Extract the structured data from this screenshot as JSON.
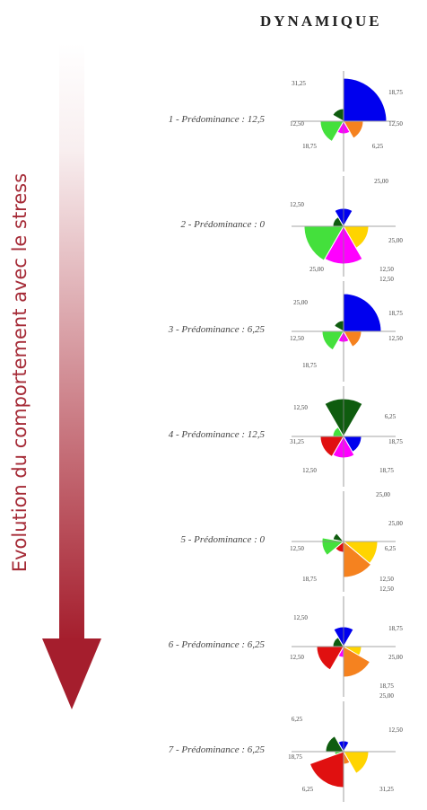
{
  "header": "DYNAMIQUE",
  "side_label": "Evolution du comportement avec le stress",
  "colors": {
    "blue": "#0000ee",
    "orange": "#f5821f",
    "magenta": "#ff00ff",
    "lightgreen": "#44e03c",
    "darkgreen": "#0f5c0f",
    "yellow": "#ffd400",
    "red": "#e01010",
    "arrow": "#a51e2d"
  },
  "rows": [
    {
      "label": "1 - Prédominance : 12,5",
      "sectors": [
        {
          "color": "blue",
          "start": 0,
          "end": 90,
          "r": 48
        },
        {
          "color": "orange",
          "start": 300,
          "end": 360,
          "r": 22
        },
        {
          "color": "magenta",
          "start": 240,
          "end": 300,
          "r": 14
        },
        {
          "color": "lightgreen",
          "start": 180,
          "end": 240,
          "r": 26
        },
        {
          "color": "darkgreen",
          "start": 90,
          "end": 150,
          "r": 14
        }
      ],
      "labels": [
        {
          "text": "31,25",
          "dx": -50,
          "dy": -40
        },
        {
          "text": "18,75",
          "dx": 58,
          "dy": -30
        },
        {
          "text": "12,50",
          "dx": -52,
          "dy": 5
        },
        {
          "text": "12,50",
          "dx": 58,
          "dy": 5
        },
        {
          "text": "18,75",
          "dx": -38,
          "dy": 30
        },
        {
          "text": "6,25",
          "dx": 38,
          "dy": 30
        }
      ]
    },
    {
      "label": "2 - Prédominance : 0",
      "sectors": [
        {
          "color": "yellow",
          "start": 300,
          "end": 360,
          "r": 28
        },
        {
          "color": "magenta",
          "start": 240,
          "end": 300,
          "r": 42
        },
        {
          "color": "lightgreen",
          "start": 180,
          "end": 240,
          "r": 44
        },
        {
          "color": "darkgreen",
          "start": 120,
          "end": 180,
          "r": 12
        },
        {
          "color": "blue",
          "start": 60,
          "end": 120,
          "r": 20
        }
      ],
      "labels": [
        {
          "text": "25,00",
          "dx": 42,
          "dy": -48
        },
        {
          "text": "12,50",
          "dx": -52,
          "dy": -22
        },
        {
          "text": "25,00",
          "dx": 58,
          "dy": 18
        },
        {
          "text": "25,00",
          "dx": -30,
          "dy": 50
        },
        {
          "text": "12,50",
          "dx": 48,
          "dy": 50
        },
        {
          "text": "12,50",
          "dx": 48,
          "dy": 61
        }
      ]
    },
    {
      "label": "3 - Prédominance : 6,25",
      "sectors": [
        {
          "color": "blue",
          "start": 0,
          "end": 90,
          "r": 42
        },
        {
          "color": "orange",
          "start": 300,
          "end": 360,
          "r": 20
        },
        {
          "color": "magenta",
          "start": 240,
          "end": 300,
          "r": 12
        },
        {
          "color": "lightgreen",
          "start": 180,
          "end": 240,
          "r": 24
        },
        {
          "color": "darkgreen",
          "start": 90,
          "end": 150,
          "r": 12
        }
      ],
      "labels": [
        {
          "text": "25,00",
          "dx": -48,
          "dy": -30
        },
        {
          "text": "18,75",
          "dx": 58,
          "dy": -18
        },
        {
          "text": "12,50",
          "dx": -52,
          "dy": 10
        },
        {
          "text": "12,50",
          "dx": 58,
          "dy": 10
        },
        {
          "text": "18,75",
          "dx": -38,
          "dy": 40
        }
      ]
    },
    {
      "label": "4 - Prédominance : 12,5",
      "sectors": [
        {
          "color": "blue",
          "start": 300,
          "end": 360,
          "r": 20
        },
        {
          "color": "magenta",
          "start": 240,
          "end": 300,
          "r": 24
        },
        {
          "color": "red",
          "start": 180,
          "end": 240,
          "r": 26
        },
        {
          "color": "lightgreen",
          "start": 120,
          "end": 180,
          "r": 12
        },
        {
          "color": "darkgreen",
          "start": 60,
          "end": 120,
          "r": 42
        }
      ],
      "labels": [
        {
          "text": "12,50",
          "dx": -48,
          "dy": -30
        },
        {
          "text": "6,25",
          "dx": 52,
          "dy": -20
        },
        {
          "text": "31,25",
          "dx": -52,
          "dy": 8
        },
        {
          "text": "18,75",
          "dx": 58,
          "dy": 8
        },
        {
          "text": "12,50",
          "dx": -38,
          "dy": 40
        },
        {
          "text": "18,75",
          "dx": 48,
          "dy": 40
        }
      ]
    },
    {
      "label": "5 - Prédominance : 0",
      "sectors": [
        {
          "color": "yellow",
          "start": 320,
          "end": 360,
          "r": 38
        },
        {
          "color": "orange",
          "start": 270,
          "end": 320,
          "r": 40
        },
        {
          "color": "red",
          "start": 220,
          "end": 270,
          "r": 12
        },
        {
          "color": "lightgreen",
          "start": 170,
          "end": 220,
          "r": 24
        },
        {
          "color": "darkgreen",
          "start": 130,
          "end": 170,
          "r": 12
        }
      ],
      "labels": [
        {
          "text": "25,00",
          "dx": 44,
          "dy": -50
        },
        {
          "text": "25,00",
          "dx": 58,
          "dy": -18
        },
        {
          "text": "12,50",
          "dx": -52,
          "dy": 10
        },
        {
          "text": "6,25",
          "dx": 52,
          "dy": 10
        },
        {
          "text": "18,75",
          "dx": -38,
          "dy": 44
        },
        {
          "text": "12,50",
          "dx": 48,
          "dy": 44
        },
        {
          "text": "12,50",
          "dx": 48,
          "dy": 55
        }
      ]
    },
    {
      "label": "6 - Prédominance : 6,25",
      "sectors": [
        {
          "color": "yellow",
          "start": 330,
          "end": 360,
          "r": 20
        },
        {
          "color": "orange",
          "start": 270,
          "end": 330,
          "r": 34
        },
        {
          "color": "magenta",
          "start": 240,
          "end": 270,
          "r": 12
        },
        {
          "color": "red",
          "start": 180,
          "end": 240,
          "r": 30
        },
        {
          "color": "darkgreen",
          "start": 120,
          "end": 180,
          "r": 12
        },
        {
          "color": "blue",
          "start": 60,
          "end": 120,
          "r": 22
        }
      ],
      "labels": [
        {
          "text": "12,50",
          "dx": -48,
          "dy": -30
        },
        {
          "text": "18,75",
          "dx": 58,
          "dy": -18
        },
        {
          "text": "12,50",
          "dx": -52,
          "dy": 14
        },
        {
          "text": "25,00",
          "dx": 58,
          "dy": 14
        },
        {
          "text": "18,75",
          "dx": 48,
          "dy": 46
        },
        {
          "text": "25,00",
          "dx": 48,
          "dy": 57
        }
      ]
    },
    {
      "label": "7 - Prédominance : 6,25",
      "sectors": [
        {
          "color": "yellow",
          "start": 300,
          "end": 360,
          "r": 28
        },
        {
          "color": "orange",
          "start": 270,
          "end": 300,
          "r": 14
        },
        {
          "color": "red",
          "start": 200,
          "end": 270,
          "r": 40
        },
        {
          "color": "lightgreen",
          "start": 180,
          "end": 200,
          "r": 10
        },
        {
          "color": "darkgreen",
          "start": 120,
          "end": 180,
          "r": 20
        },
        {
          "color": "blue",
          "start": 60,
          "end": 120,
          "r": 12
        }
      ],
      "labels": [
        {
          "text": "6,25",
          "dx": -52,
          "dy": -34
        },
        {
          "text": "12,50",
          "dx": 58,
          "dy": -22
        },
        {
          "text": "18,75",
          "dx": -54,
          "dy": 8
        },
        {
          "text": "6,25",
          "dx": -40,
          "dy": 44
        },
        {
          "text": "31,25",
          "dx": 48,
          "dy": 44
        }
      ]
    }
  ]
}
